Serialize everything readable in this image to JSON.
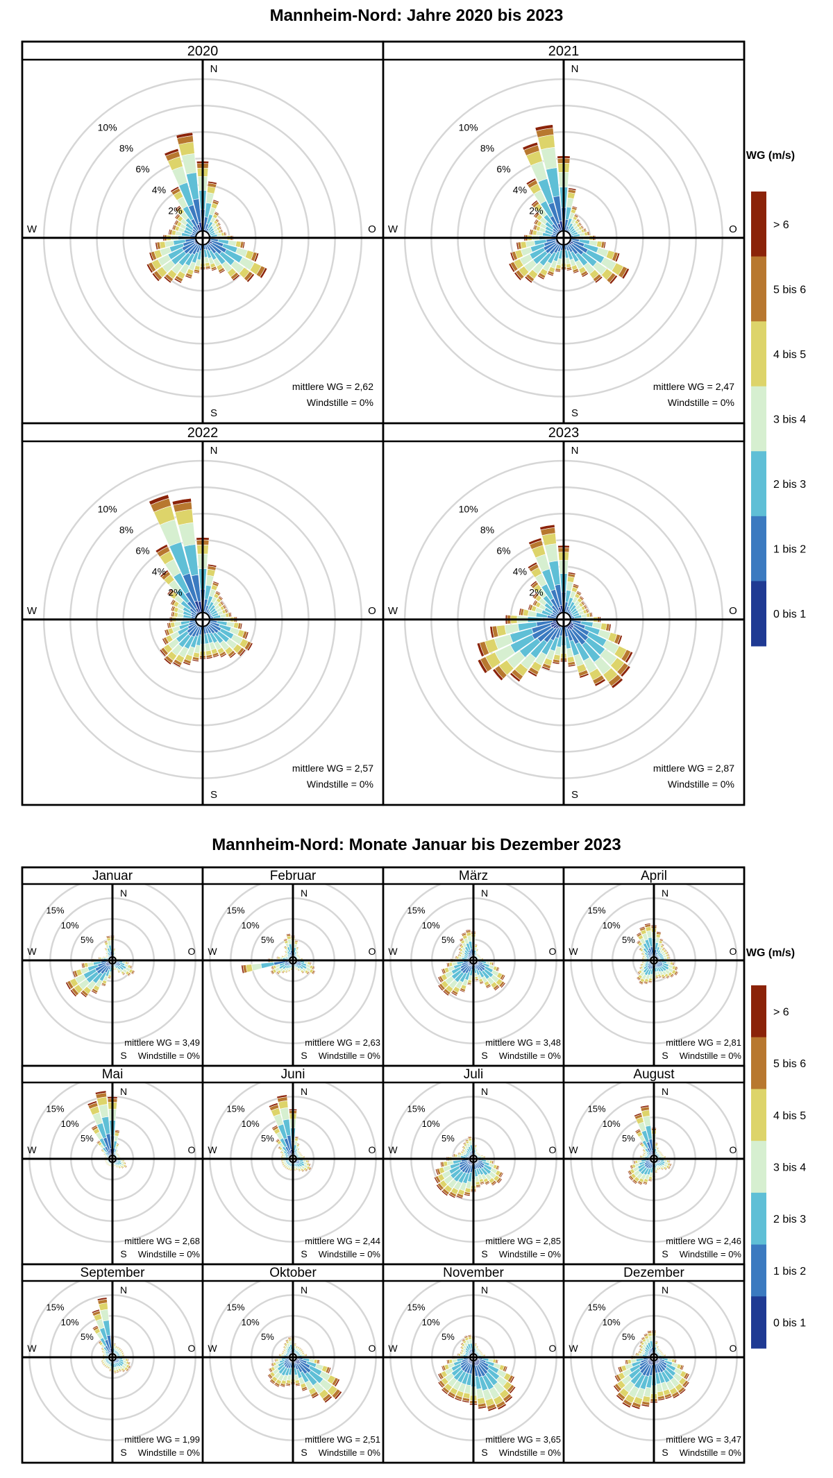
{
  "bins": [
    "0 bis 1",
    "1 bis 2",
    "2 bis 3",
    "3 bis 4",
    "4 bis 5",
    "5 bis 6",
    "> 6"
  ],
  "bin_colors": [
    "#1f3a93",
    "#3b7ac0",
    "#5fbfd6",
    "#d6efd0",
    "#ddd46a",
    "#b8782f",
    "#8b2309"
  ],
  "legend_title": "WG (m/s)",
  "directions": {
    "n": "N",
    "o": "O",
    "s": "S",
    "w": "W"
  },
  "chart_data": [
    {
      "type": "windrose",
      "title": "Mannheim-Nord: Jahre 2020 bis 2023",
      "ring_labels": [
        "2%",
        "4%",
        "6%",
        "8%",
        "10%"
      ],
      "ring_values": [
        2,
        4,
        6,
        8,
        10
      ],
      "rmax": 12,
      "direction_sectors": 36,
      "panels": [
        {
          "label": "2020",
          "mean_text": "mittlere WG = 2,62",
          "calm_text": "Windstille = 0%",
          "totals": [
            5.8,
            4.3,
            3.0,
            2.2,
            1.8,
            1.7,
            1.6,
            1.6,
            1.8,
            2.3,
            3.2,
            4.4,
            5.4,
            4.8,
            4.0,
            3.0,
            2.6,
            2.4,
            2.4,
            2.7,
            3.2,
            3.8,
            4.2,
            4.7,
            4.7,
            4.2,
            3.6,
            3.0,
            2.6,
            2.4,
            2.4,
            2.6,
            3.0,
            4.3,
            7.0,
            8.0
          ]
        },
        {
          "label": "2021",
          "mean_text": "mittlere WG = 2,47",
          "calm_text": "Windstille = 0%",
          "totals": [
            6.2,
            3.8,
            2.5,
            2.0,
            1.8,
            1.7,
            1.7,
            1.8,
            2.0,
            2.4,
            3.2,
            4.4,
            5.5,
            5.0,
            4.2,
            3.3,
            2.8,
            2.5,
            2.4,
            2.6,
            3.0,
            3.5,
            4.2,
            4.6,
            4.6,
            4.2,
            3.6,
            3.0,
            2.6,
            2.4,
            2.5,
            2.8,
            3.5,
            5.0,
            7.5,
            8.6
          ]
        },
        {
          "label": "2022",
          "mean_text": "mittlere WG = 2,57",
          "calm_text": "Windstille = 0%",
          "totals": [
            6.2,
            4.2,
            3.0,
            2.4,
            2.2,
            2.0,
            2.0,
            2.0,
            2.2,
            2.6,
            3.0,
            3.6,
            4.2,
            4.0,
            3.6,
            3.2,
            3.0,
            3.0,
            3.0,
            3.2,
            3.6,
            4.0,
            4.2,
            4.0,
            3.4,
            3.0,
            2.7,
            2.5,
            2.4,
            2.5,
            2.7,
            3.3,
            4.6,
            6.3,
            9.8,
            9.2
          ]
        },
        {
          "label": "2023",
          "mean_text": "mittlere WG = 2,87",
          "calm_text": "Windstille = 0%",
          "totals": [
            5.6,
            3.6,
            2.8,
            2.4,
            2.2,
            2.0,
            2.0,
            2.0,
            2.2,
            2.8,
            3.6,
            4.6,
            5.8,
            6.2,
            6.4,
            5.6,
            4.6,
            3.6,
            3.2,
            3.4,
            4.0,
            4.8,
            5.8,
            6.6,
            7.2,
            6.8,
            5.6,
            4.4,
            3.4,
            2.8,
            2.6,
            2.9,
            3.6,
            4.8,
            6.4,
            7.2
          ]
        }
      ]
    },
    {
      "type": "windrose",
      "title": "Mannheim-Nord: Monate Januar bis Dezember 2023",
      "ring_labels": [
        "5%",
        "10%",
        "15%"
      ],
      "ring_values": [
        5,
        10,
        15
      ],
      "rmax": 20,
      "direction_sectors": 36,
      "panels": [
        {
          "label": "Januar",
          "mean_text": "mittlere WG = 3,49",
          "calm_text": "Windstille = 0%",
          "totals": [
            6,
            3,
            2,
            1.5,
            1.5,
            1.5,
            1.5,
            1.5,
            2,
            3,
            4,
            5,
            6,
            5.5,
            4.5,
            3.5,
            2.5,
            2.5,
            3,
            4.5,
            6.5,
            9,
            11,
            12.5,
            12.5,
            10,
            7.5,
            5,
            3.5,
            2.5,
            2,
            2,
            2.5,
            3.5,
            5,
            6
          ]
        },
        {
          "label": "Februar",
          "mean_text": "mittlere WG = 2,63",
          "calm_text": "Windstille = 0%",
          "totals": [
            6,
            5,
            3.5,
            2.5,
            2,
            2,
            2,
            2,
            2.5,
            3.5,
            4.5,
            5.5,
            6,
            5,
            4,
            3,
            2.5,
            2,
            2,
            2.5,
            3,
            3.5,
            4,
            5,
            6,
            5.5,
            12.5,
            6,
            4,
            3,
            2.5,
            2.5,
            3,
            4,
            5.5,
            6.5
          ]
        },
        {
          "label": "März",
          "mean_text": "mittlere WG = 3,48",
          "calm_text": "Windstille = 0%",
          "totals": [
            7,
            4,
            3,
            2,
            2,
            2,
            2,
            2,
            2.5,
            3.5,
            5,
            6.5,
            8.5,
            9.5,
            9,
            7.5,
            6,
            5,
            5,
            6,
            8,
            9.5,
            10.5,
            10.5,
            9.5,
            8,
            6.5,
            5.5,
            4.5,
            4,
            4,
            4.5,
            5,
            6,
            7,
            7.5
          ]
        },
        {
          "label": "April",
          "mean_text": "mittlere WG = 2,81",
          "calm_text": "Windstille = 0%",
          "totals": [
            8.5,
            7,
            5.5,
            4.5,
            4,
            4,
            4,
            4,
            4,
            4.5,
            5,
            6,
            6.5,
            6,
            5.5,
            5,
            4.5,
            4.5,
            5,
            5.5,
            6,
            6.5,
            6,
            5,
            4,
            3.5,
            3,
            3,
            3,
            3,
            3.5,
            4.5,
            6,
            7.5,
            8.5,
            9
          ]
        },
        {
          "label": "Mai",
          "mean_text": "mittlere WG = 2,68",
          "calm_text": "Windstille = 0%",
          "totals": [
            15,
            7,
            4,
            2.5,
            2,
            2,
            2,
            2,
            2,
            2.5,
            3,
            3.5,
            4,
            3.5,
            3,
            2.5,
            2,
            2,
            2,
            2,
            2,
            2,
            2,
            2,
            2,
            2,
            2,
            2,
            2,
            2,
            2.5,
            3.5,
            5.5,
            9,
            14.5,
            16.5
          ]
        },
        {
          "label": "Juni",
          "mean_text": "mittlere WG = 2,44",
          "calm_text": "Windstille = 0%",
          "totals": [
            12,
            5.5,
            4,
            3,
            2.5,
            2.5,
            2.5,
            2.5,
            3,
            3.5,
            4,
            4.5,
            5,
            4.5,
            4,
            3.5,
            3,
            3,
            3,
            3,
            3,
            3,
            3,
            3,
            3,
            3,
            3,
            3,
            3,
            3,
            3.5,
            4.5,
            6,
            9,
            14,
            15.5
          ]
        },
        {
          "label": "Juli",
          "mean_text": "mittlere WG = 2,85",
          "calm_text": "Windstille = 0%",
          "totals": [
            5,
            3.5,
            2.5,
            2,
            2,
            2,
            2,
            2.5,
            3,
            4,
            5,
            6.5,
            8,
            8.5,
            8,
            7,
            6.5,
            7,
            8,
            9,
            10,
            10.5,
            11,
            11,
            10.5,
            9.5,
            8,
            6.5,
            5,
            4,
            3.5,
            3.5,
            4,
            4.5,
            5,
            5.5
          ]
        },
        {
          "label": "August",
          "mean_text": "mittlere WG = 2,46",
          "calm_text": "Windstille = 0%",
          "totals": [
            7.5,
            4,
            3,
            2.5,
            2.5,
            2.5,
            2.5,
            2.5,
            3,
            3.5,
            4,
            4.5,
            4.5,
            4,
            3.5,
            3,
            3,
            3.5,
            4.5,
            5.5,
            6.5,
            7,
            7.5,
            7.5,
            7,
            6,
            5,
            4,
            3.5,
            3,
            3,
            3.5,
            5,
            8,
            11.5,
            13
          ]
        },
        {
          "label": "September",
          "mean_text": "mittlere WG = 1,99",
          "calm_text": "Windstille = 0%",
          "totals": [
            5,
            3.5,
            3,
            3,
            3,
            3,
            3,
            3,
            3,
            3.5,
            4,
            4.5,
            5,
            5,
            4.5,
            4,
            4,
            4,
            4,
            3.5,
            3,
            3,
            3,
            3,
            3,
            3,
            2.5,
            2.5,
            2.5,
            2.5,
            3,
            3.5,
            5,
            8.5,
            12,
            14.5
          ]
        },
        {
          "label": "Oktober",
          "mean_text": "mittlere WG = 2,51",
          "calm_text": "Windstille = 0%",
          "totals": [
            5,
            3.5,
            3,
            3,
            3,
            3,
            3,
            3,
            3.5,
            4.5,
            6.5,
            9.5,
            12.5,
            14.5,
            13.5,
            11,
            8.5,
            7,
            6.5,
            7,
            7.5,
            8,
            8,
            7.5,
            6.5,
            5.5,
            4.5,
            4,
            3.5,
            3,
            3,
            3,
            3.5,
            4,
            4.5,
            5
          ]
        },
        {
          "label": "November",
          "mean_text": "mittlere WG = 3,65",
          "calm_text": "Windstille = 0%",
          "totals": [
            5,
            3.5,
            3,
            2.5,
            2.5,
            2.5,
            2.5,
            2.5,
            3,
            4,
            6,
            8.5,
            11,
            12.5,
            13.5,
            14,
            13.5,
            12.5,
            11.5,
            11,
            11,
            11,
            11,
            10.5,
            9.5,
            8,
            6.5,
            5,
            4,
            3.5,
            3.5,
            4,
            4.5,
            5,
            5.5,
            5.5
          ]
        },
        {
          "label": "Dezember",
          "mean_text": "mittlere WG = 3,47",
          "calm_text": "Windstille = 0%",
          "totals": [
            6.5,
            4,
            3,
            2.5,
            2.5,
            2.5,
            2.5,
            2.5,
            3,
            4,
            5.5,
            7.5,
            9.5,
            10.5,
            11,
            11,
            10.5,
            10.5,
            11,
            12,
            13,
            13.5,
            13,
            12,
            10.5,
            9,
            7,
            5.5,
            4.5,
            4,
            4,
            4.5,
            5,
            5.5,
            6,
            6.5
          ]
        }
      ]
    }
  ]
}
